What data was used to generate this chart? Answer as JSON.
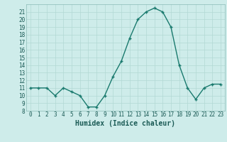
{
  "x": [
    0,
    1,
    2,
    3,
    4,
    5,
    6,
    7,
    8,
    9,
    10,
    11,
    12,
    13,
    14,
    15,
    16,
    17,
    18,
    19,
    20,
    21,
    22,
    23
  ],
  "y": [
    11,
    11,
    11,
    10,
    11,
    10.5,
    10,
    8.5,
    8.5,
    10,
    12.5,
    14.5,
    17.5,
    20,
    21,
    21.5,
    21,
    19,
    14,
    11,
    9.5,
    11,
    11.5,
    11.5
  ],
  "line_color": "#1a7a6e",
  "marker_color": "#1a7a6e",
  "bg_color": "#ceecea",
  "grid_color": "#b2d8d4",
  "xlabel": "Humidex (Indice chaleur)",
  "ylim": [
    8,
    22
  ],
  "xlim": [
    -0.5,
    23.5
  ],
  "yticks": [
    8,
    9,
    10,
    11,
    12,
    13,
    14,
    15,
    16,
    17,
    18,
    19,
    20,
    21
  ],
  "xticks": [
    0,
    1,
    2,
    3,
    4,
    5,
    6,
    7,
    8,
    9,
    10,
    11,
    12,
    13,
    14,
    15,
    16,
    17,
    18,
    19,
    20,
    21,
    22,
    23
  ],
  "tick_fontsize": 5.5,
  "label_fontsize": 7,
  "line_width": 1.0,
  "marker_size": 3.5
}
